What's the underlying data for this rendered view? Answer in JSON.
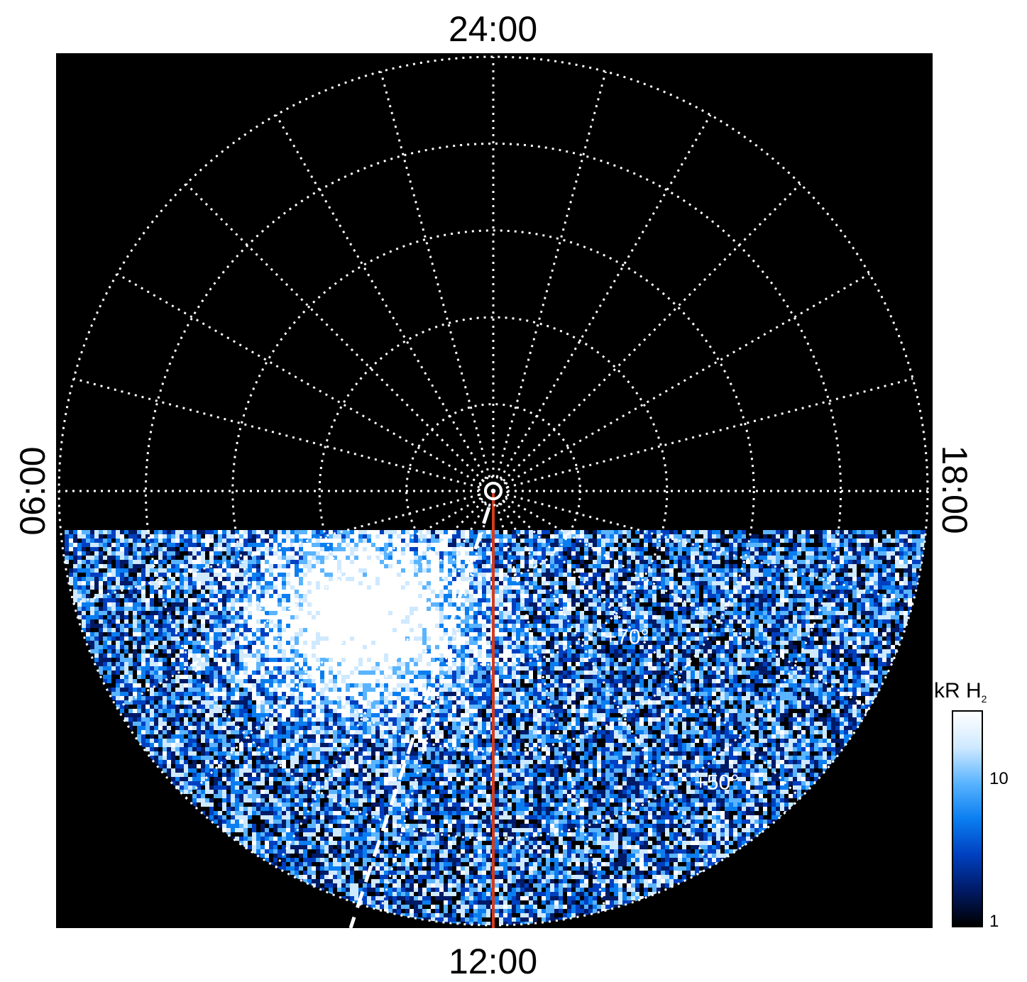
{
  "local_time_labels": {
    "top": "24:00",
    "bottom": "12:00",
    "left": "06:00",
    "right": "18:00"
  },
  "latitude_labels": [
    {
      "text": "+70°",
      "ring_index": 2,
      "angle_deg": 147
    },
    {
      "text": "+50°",
      "ring_index": 4,
      "angle_deg": 147
    }
  ],
  "colorbar": {
    "title": "kR H",
    "title_sub": "2",
    "scale": "log",
    "range": [
      1,
      30
    ],
    "ticks": [
      {
        "value": 10,
        "label": "10"
      },
      {
        "value": 1,
        "label": "1"
      }
    ],
    "colormap": [
      "#000000",
      "#001a66",
      "#0040c0",
      "#0a7ef0",
      "#5ab4ff",
      "#cfe9ff",
      "#ffffff"
    ]
  },
  "grid": {
    "latitude_rings": 5,
    "meridians": 24
  },
  "colors": {
    "background": "#000000",
    "grid": "#ffffff",
    "red_line": "#d23c1e",
    "emission_cmap": [
      "#000000",
      "#001a66",
      "#0040c0",
      "#0a7ef0",
      "#5ab4ff",
      "#cfe9ff",
      "#ffffff"
    ]
  }
}
